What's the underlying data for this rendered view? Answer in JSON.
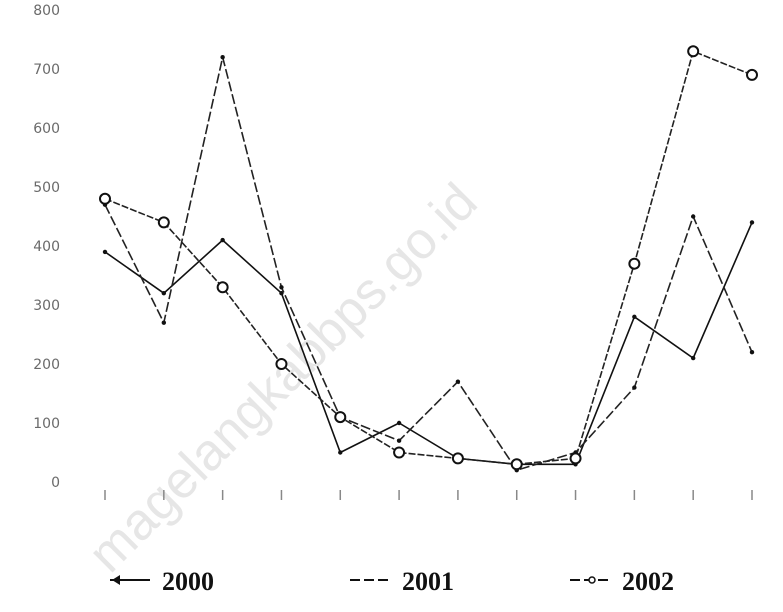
{
  "watermark": "magelangkabbps.go.id",
  "chart_data": {
    "type": "line",
    "ylim": [
      0,
      1400
    ],
    "yticks": [
      "0",
      "100",
      "200",
      "300",
      "400",
      "500",
      "600",
      "700",
      "800",
      "900",
      "1000"
    ],
    "x": [
      1,
      2,
      3,
      4,
      5,
      6,
      7,
      8,
      9,
      10,
      11,
      12
    ],
    "series": [
      {
        "name": "2000",
        "color": "#111111",
        "dash": "solid",
        "values": [
          390,
          320,
          410,
          320,
          50,
          100,
          40,
          30,
          30,
          280,
          210,
          440
        ]
      },
      {
        "name": "2001",
        "color": "#222222",
        "dash": "dashed",
        "values": [
          470,
          270,
          720,
          330,
          110,
          70,
          170,
          20,
          50,
          160,
          450,
          220
        ]
      },
      {
        "name": "2002",
        "color": "#222222",
        "dash": "dashed-marker",
        "values": [
          480,
          440,
          330,
          200,
          110,
          50,
          40,
          30,
          40,
          370,
          730,
          690
        ]
      }
    ]
  }
}
